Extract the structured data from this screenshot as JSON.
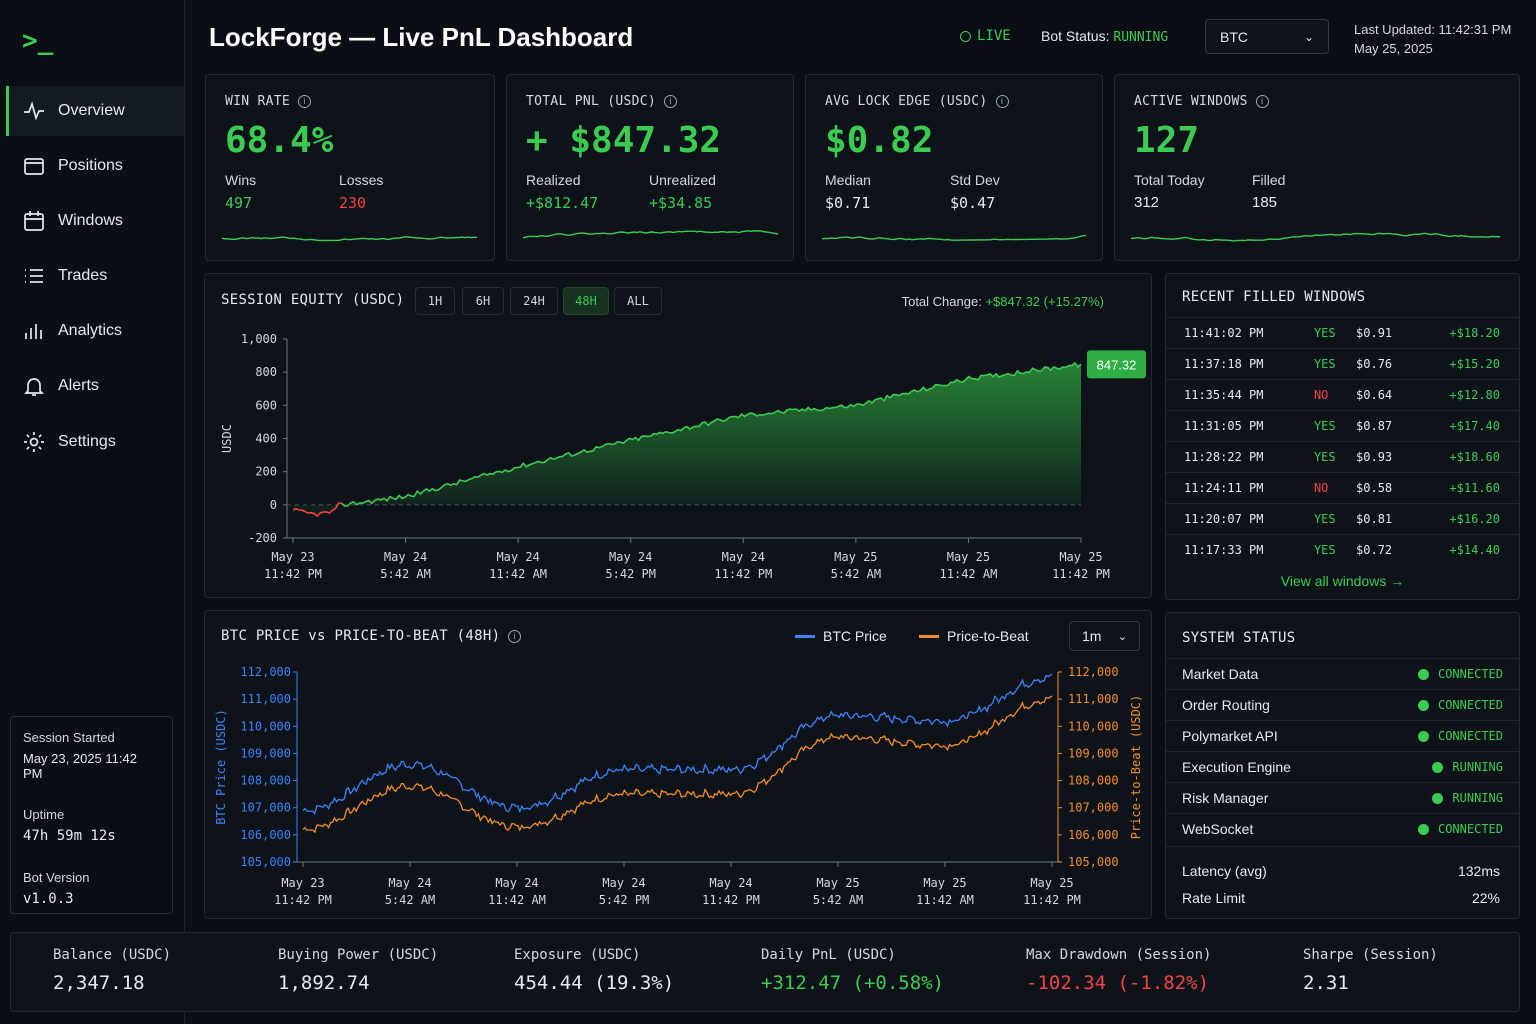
{
  "app": {
    "logo": ">_",
    "title": "LockForge — Live PnL Dashboard"
  },
  "nav": [
    {
      "label": "Overview",
      "icon": "activity-icon",
      "active": true
    },
    {
      "label": "Positions",
      "icon": "wallet-icon"
    },
    {
      "label": "Windows",
      "icon": "calendar-icon"
    },
    {
      "label": "Trades",
      "icon": "list-icon"
    },
    {
      "label": "Analytics",
      "icon": "bar-chart-icon"
    },
    {
      "label": "Alerts",
      "icon": "bell-icon"
    },
    {
      "label": "Settings",
      "icon": "gear-icon"
    }
  ],
  "session": {
    "started_label": "Session Started",
    "started_value": "May 23, 2025 11:42 PM",
    "uptime_label": "Uptime",
    "uptime_value": "47h 59m 12s",
    "version_label": "Bot Version",
    "version_value": "v1.0.3"
  },
  "header": {
    "live": "LIVE",
    "bot_status_label": "Bot Status:",
    "bot_status_value": "RUNNING",
    "asset": "BTC",
    "updated_line1": "Last Updated: 11:42:31 PM",
    "updated_line2": "May 25, 2025"
  },
  "kpis": [
    {
      "title": "WIN RATE",
      "value": "68.4%",
      "sub1_label": "Wins",
      "sub1_value": "497",
      "sub2_label": "Losses",
      "sub2_value": "230"
    },
    {
      "title": "TOTAL PNL (USDC)",
      "value": "+ $847.32",
      "sub1_label": "Realized",
      "sub1_value": "+$812.47",
      "sub2_label": "Unrealized",
      "sub2_value": "+$34.85"
    },
    {
      "title": "AVG LOCK EDGE (USDC)",
      "value": "$0.82",
      "sub1_label": "Median",
      "sub1_value": "$0.71",
      "sub2_label": "Std Dev",
      "sub2_value": "$0.47"
    },
    {
      "title": "ACTIVE WINDOWS",
      "value": "127",
      "sub1_label": "Total Today",
      "sub1_value": "312",
      "sub2_label": "Filled",
      "sub2_value": "185"
    }
  ],
  "equity": {
    "title": "SESSION EQUITY (USDC)",
    "ranges": [
      "1H",
      "6H",
      "24H",
      "48H",
      "ALL"
    ],
    "active_range": "48H",
    "total_change_label": "Total Change:",
    "total_change_value": "+$847.32 (+15.27%)",
    "current_label": "847.32",
    "ylabel": "USDC",
    "yticks": [
      "1,000",
      "800",
      "600",
      "400",
      "200",
      "0",
      "-200"
    ],
    "xticks": [
      [
        "May 23",
        "11:42 PM"
      ],
      [
        "May 24",
        "5:42 AM"
      ],
      [
        "May 24",
        "11:42 AM"
      ],
      [
        "May 24",
        "5:42 PM"
      ],
      [
        "May 24",
        "11:42 PM"
      ],
      [
        "May 25",
        "5:42 AM"
      ],
      [
        "May 25",
        "11:42 AM"
      ],
      [
        "May 25",
        "11:42 PM"
      ]
    ]
  },
  "btc_chart": {
    "title": "BTC PRICE vs PRICE-TO-BEAT (48H)",
    "legend": [
      "BTC Price",
      "Price-to-Beat"
    ],
    "interval": "1m",
    "ylabel_left": "BTC Price (USDC)",
    "ylabel_right": "Price-to-Beat (USDC)",
    "yticks": [
      "112,000",
      "111,000",
      "110,000",
      "109,000",
      "108,000",
      "107,000",
      "106,000",
      "105,000"
    ],
    "xticks": [
      [
        "May 23",
        "11:42 PM"
      ],
      [
        "May 24",
        "5:42 AM"
      ],
      [
        "May 24",
        "11:42 AM"
      ],
      [
        "May 24",
        "5:42 PM"
      ],
      [
        "May 24",
        "11:42 PM"
      ],
      [
        "May 25",
        "5:42 AM"
      ],
      [
        "May 25",
        "11:42 AM"
      ],
      [
        "May 25",
        "11:42 PM"
      ]
    ],
    "colors": {
      "btc": "#3b82f6",
      "ptb": "#f28c28"
    }
  },
  "recent": {
    "title": "RECENT FILLED WINDOWS",
    "rows": [
      [
        "11:41:02 PM",
        "YES",
        "$0.91",
        "+$18.20"
      ],
      [
        "11:37:18 PM",
        "YES",
        "$0.76",
        "+$15.20"
      ],
      [
        "11:35:44 PM",
        "NO",
        "$0.64",
        "+$12.80"
      ],
      [
        "11:31:05 PM",
        "YES",
        "$0.87",
        "+$17.40"
      ],
      [
        "11:28:22 PM",
        "YES",
        "$0.93",
        "+$18.60"
      ],
      [
        "11:24:11 PM",
        "NO",
        "$0.58",
        "+$11.60"
      ],
      [
        "11:20:07 PM",
        "YES",
        "$0.81",
        "+$16.20"
      ],
      [
        "11:17:33 PM",
        "YES",
        "$0.72",
        "+$14.40"
      ]
    ],
    "view_all": "View all windows →"
  },
  "system": {
    "title": "SYSTEM STATUS",
    "rows": [
      [
        "Market Data",
        "CONNECTED"
      ],
      [
        "Order Routing",
        "CONNECTED"
      ],
      [
        "Polymarket API",
        "CONNECTED"
      ],
      [
        "Execution Engine",
        "RUNNING"
      ],
      [
        "Risk Manager",
        "RUNNING"
      ],
      [
        "WebSocket",
        "CONNECTED"
      ]
    ],
    "latency_label": "Latency (avg)",
    "latency_value": "132ms",
    "rate_label": "Rate Limit",
    "rate_value": "22%"
  },
  "bottom": [
    {
      "label": "Balance (USDC)",
      "value": "2,347.18",
      "tone": "neutral"
    },
    {
      "label": "Buying Power (USDC)",
      "value": "1,892.74",
      "tone": "neutral"
    },
    {
      "label": "Exposure (USDC)",
      "value": "454.44 (19.3%)",
      "tone": "neutral"
    },
    {
      "label": "Daily PnL (USDC)",
      "value": "+312.47 (+0.58%)",
      "tone": "pos"
    },
    {
      "label": "Max Drawdown (Session)",
      "value": "-102.34 (-1.82%)",
      "tone": "neg"
    },
    {
      "label": "Sharpe (Session)",
      "value": "2.31",
      "tone": "neutral"
    }
  ],
  "chart_data": [
    {
      "type": "area",
      "ylabel": "USDC",
      "ylim": [
        -200,
        1000
      ],
      "x": [
        "May 23 11:42 PM",
        "May 24 5:42 AM",
        "May 24 11:42 AM",
        "May 24 5:42 PM",
        "May 24 11:42 PM",
        "May 25 5:42 AM",
        "May 25 11:42 AM",
        "May 25 11:42 PM"
      ],
      "series": [
        {
          "values": [
            -40,
            50,
            230,
            390,
            540,
            600,
            760,
            847.32
          ]
        }
      ]
    },
    {
      "type": "line",
      "ylabel_left": "BTC Price (USDC)",
      "ylabel_right": "Price-to-Beat (USDC)",
      "ylim": [
        105000,
        112000
      ],
      "x": [
        "May 23 11:42 PM",
        "May 24 5:42 AM",
        "May 24 11:42 AM",
        "May 24 5:42 PM",
        "May 24 11:42 PM",
        "May 25 5:42 AM",
        "May 25 11:42 AM",
        "May 25 11:42 PM"
      ],
      "series": [
        {
          "name": "BTC Price",
          "values": [
            106900,
            108600,
            107000,
            108400,
            108400,
            110400,
            110200,
            111800
          ]
        },
        {
          "name": "Price-to-Beat",
          "values": [
            106200,
            107800,
            106300,
            107500,
            107500,
            109600,
            109300,
            111000
          ]
        }
      ]
    }
  ]
}
